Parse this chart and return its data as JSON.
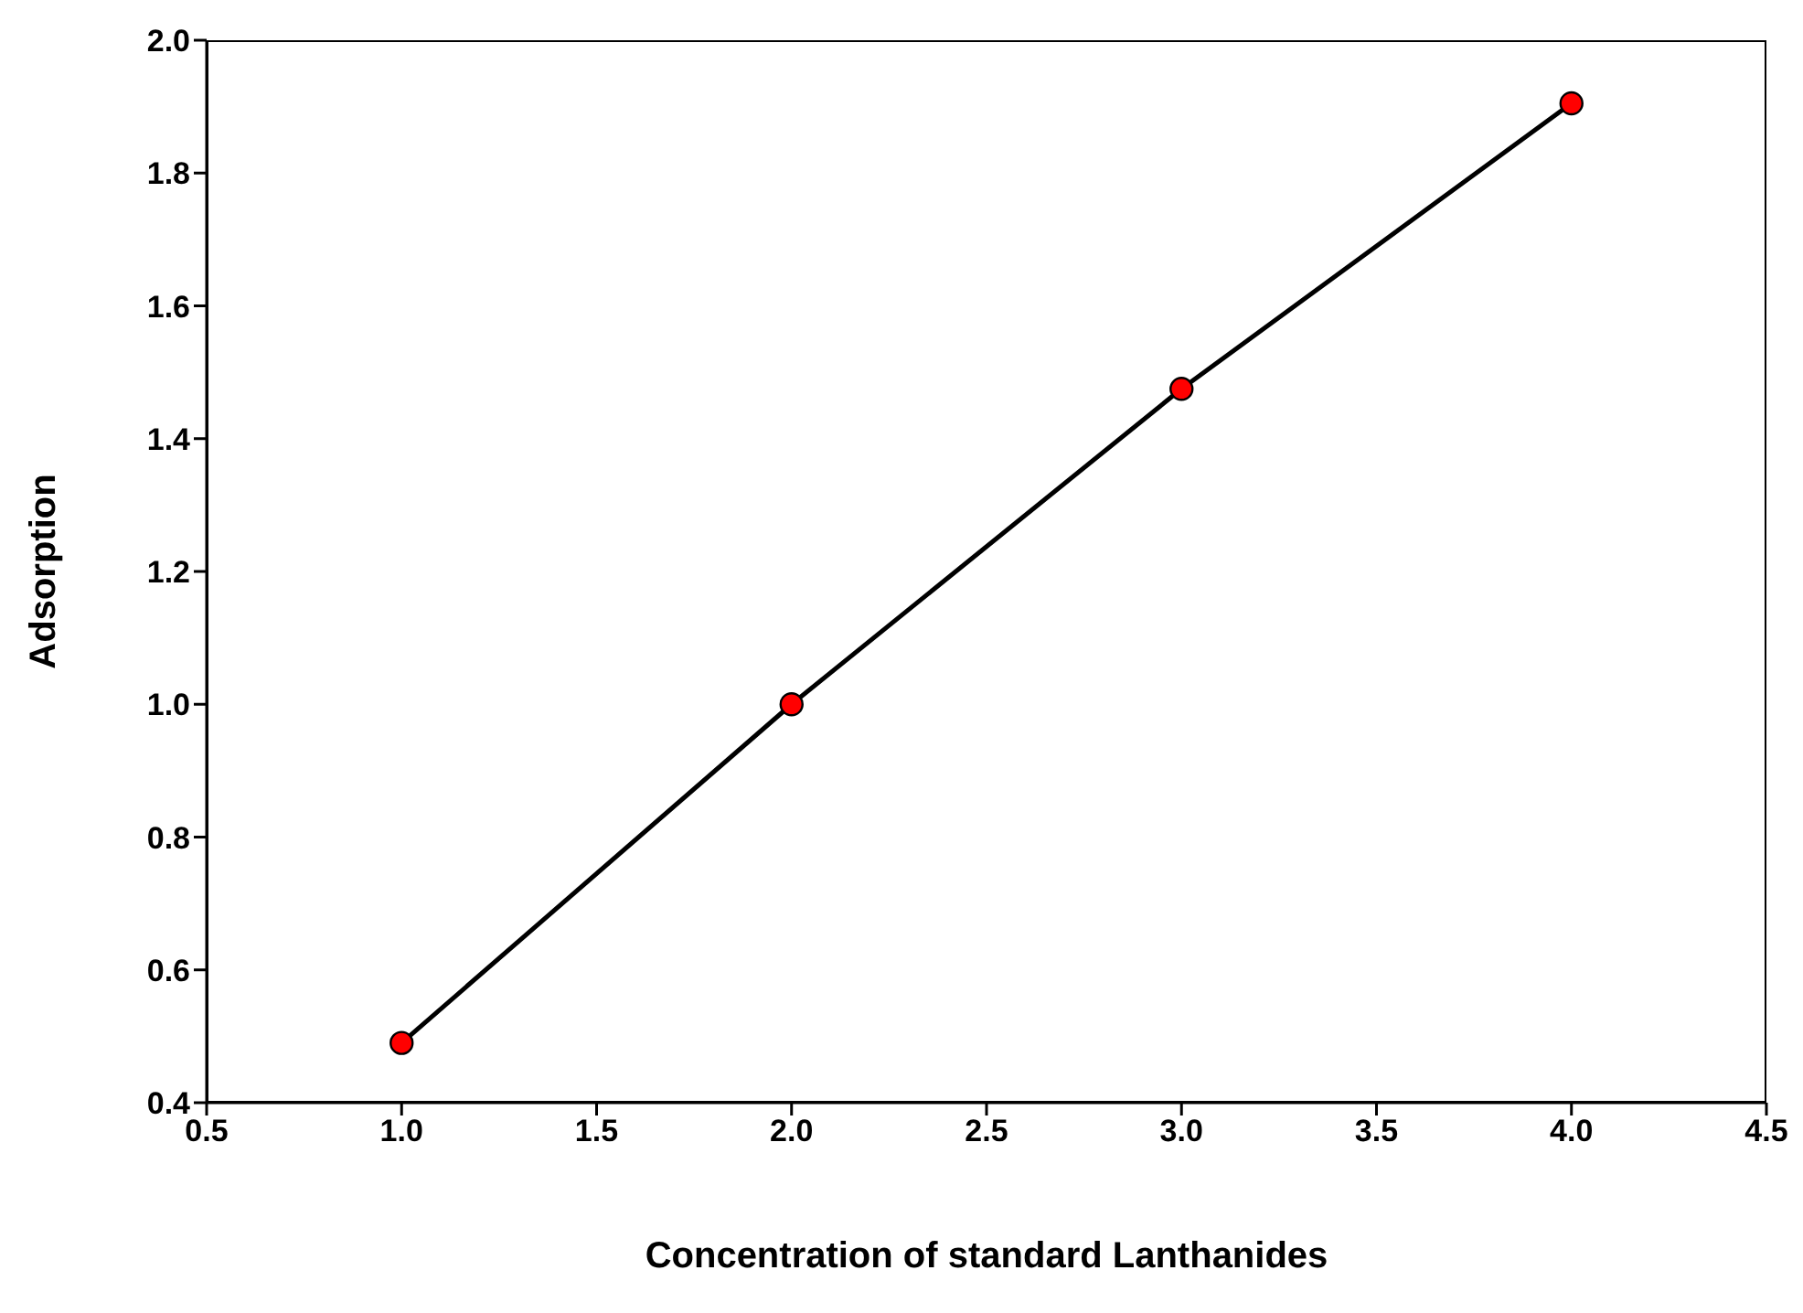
{
  "chart_data": {
    "type": "line",
    "xlabel": "Concentration of standard Lanthanides",
    "ylabel": "Adsorption",
    "x": [
      1,
      2,
      3,
      4
    ],
    "series": [
      {
        "color": "#ff0000",
        "values": [
          0.49,
          1.0,
          1.475,
          1.905
        ]
      }
    ],
    "xlim": [
      0.5,
      4.5
    ],
    "xticks": [
      0.5,
      {
        "value": 1,
        "label": "1.0"
      },
      1.5,
      {
        "value": 2,
        "label": "2.0"
      },
      2.5,
      {
        "value": 3,
        "label": "3.0"
      },
      3.5,
      {
        "value": 4,
        "label": "4.0"
      },
      4.5
    ],
    "ylim": [
      0.4,
      2.0
    ],
    "yticks": [
      0.4,
      0.6,
      0.8,
      {
        "value": 1,
        "label": "1.0"
      },
      1.2,
      1.4,
      1.6,
      1.8,
      {
        "value": 2,
        "label": "2.0"
      }
    ],
    "marker": "circle",
    "line_style": "solid",
    "grid": false,
    "legend": false
  }
}
